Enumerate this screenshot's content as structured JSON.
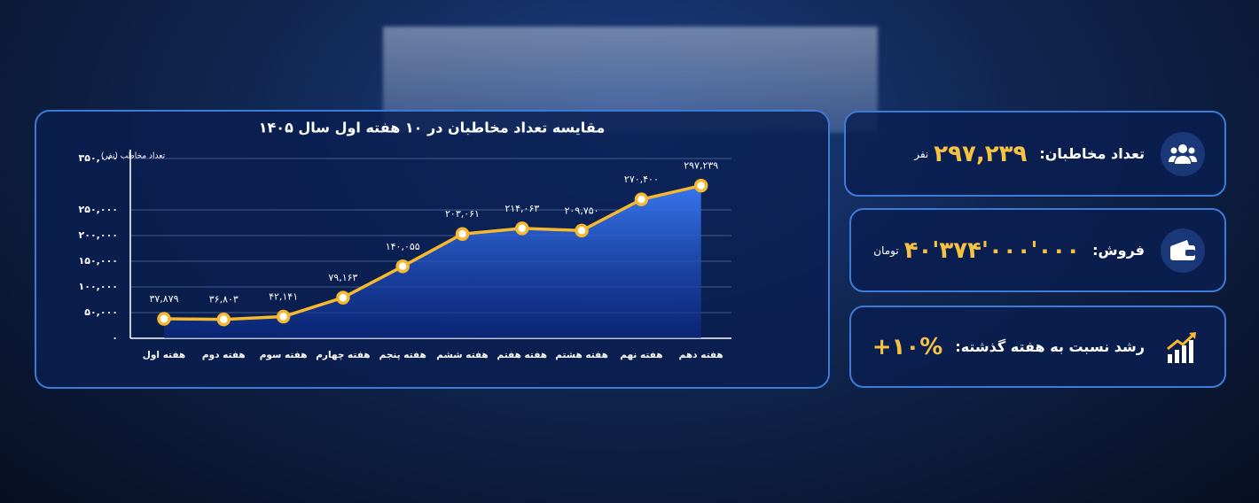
{
  "chart_data": {
    "type": "line",
    "title": "مقایسه تعداد مخاطبان در ۱۰ هفته اول سال ۱۴۰۵",
    "y_label": "تعداد مخاطب (نفر)",
    "categories": [
      "هفته اول",
      "هفته دوم",
      "هفته سوم",
      "هفته چهارم",
      "هفته پنجم",
      "هفته ششم",
      "هفته هفتم",
      "هفته هشتم",
      "هفته نهم",
      "هفته دهم"
    ],
    "values": [
      37879,
      36803,
      42141,
      79163,
      140055,
      203061,
      214063,
      209750,
      270400,
      297239
    ],
    "value_labels": [
      "۳۷,۸۷۹",
      "۳۶,۸۰۳",
      "۴۲,۱۴۱",
      "۷۹,۱۶۳",
      "۱۴۰,۰۵۵",
      "۲۰۳,۰۶۱",
      "۲۱۴,۰۶۳",
      "۲۰۹,۷۵۰",
      "۲۷۰,۴۰۰",
      "۲۹۷,۲۳۹"
    ],
    "color": "#f5b82e",
    "ylim": [
      0,
      350000
    ],
    "yticks": [
      {
        "value": 0,
        "label": "۰"
      },
      {
        "value": 50000,
        "label": "۵۰,۰۰۰"
      },
      {
        "value": 100000,
        "label": "۱۰۰,۰۰۰"
      },
      {
        "value": 150000,
        "label": "۱۵۰,۰۰۰"
      },
      {
        "value": 200000,
        "label": "۲۰۰,۰۰۰"
      },
      {
        "value": 250000,
        "label": "۲۵۰,۰۰۰"
      },
      {
        "value": 350000,
        "label": "۳۵۰,۰۰۰"
      }
    ],
    "grid": true
  },
  "stats": [
    {
      "label": "تعداد مخاطبان:",
      "value": "۲۹۷,۲۳۹",
      "unit": "نفر"
    },
    {
      "label": "فروش:",
      "value": "۴۰'۳۷۴'۰۰۰'۰۰۰",
      "unit": "تومان"
    },
    {
      "label": "رشد نسبت به هفته گذشته:",
      "value": "+۱۰%"
    }
  ]
}
